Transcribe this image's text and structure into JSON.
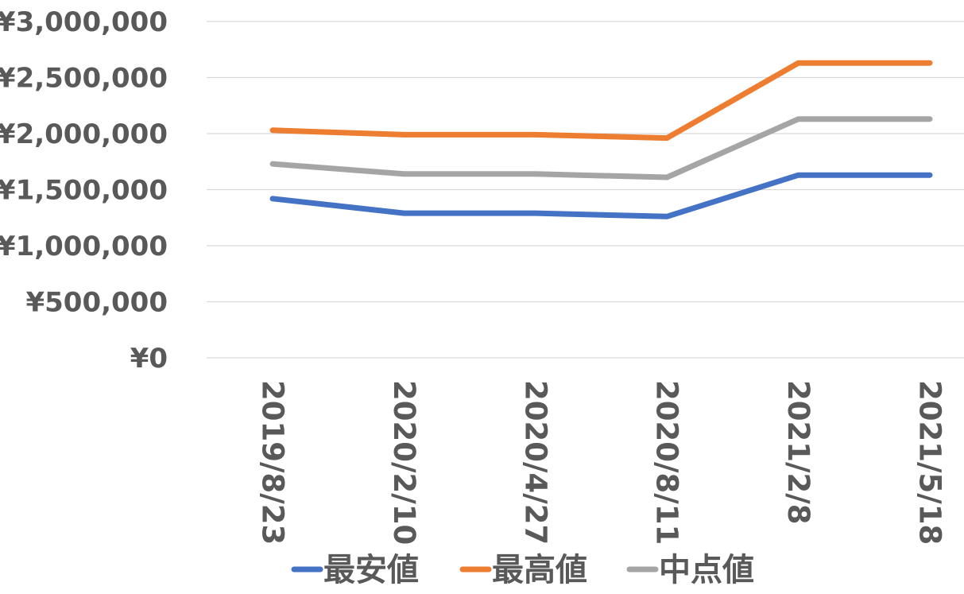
{
  "chart_data": {
    "type": "line",
    "title": "",
    "xlabel": "",
    "ylabel": "",
    "categories": [
      "2019/8/23",
      "2020/2/10",
      "2020/4/27",
      "2020/8/11",
      "2021/2/8",
      "2021/5/18"
    ],
    "ylim": [
      0,
      3000000
    ],
    "yticks": [
      0,
      500000,
      1000000,
      1500000,
      2000000,
      2500000,
      3000000
    ],
    "ytick_labels": [
      "¥0",
      "¥500,000",
      "¥1,000,000",
      "¥1,500,000",
      "¥2,000,000",
      "¥2,500,000",
      "¥3,000,000"
    ],
    "grid": true,
    "legend_position": "bottom",
    "series": [
      {
        "name": "最安値",
        "color": "#4472C4",
        "values": [
          1420000,
          1290000,
          1290000,
          1260000,
          1630000,
          1630000
        ]
      },
      {
        "name": "最高値",
        "color": "#ED7D31",
        "values": [
          2030000,
          1990000,
          1990000,
          1960000,
          2630000,
          2630000
        ]
      },
      {
        "name": "中点値",
        "color": "#A5A5A5",
        "values": [
          1730000,
          1640000,
          1640000,
          1610000,
          2130000,
          2130000
        ]
      }
    ]
  }
}
